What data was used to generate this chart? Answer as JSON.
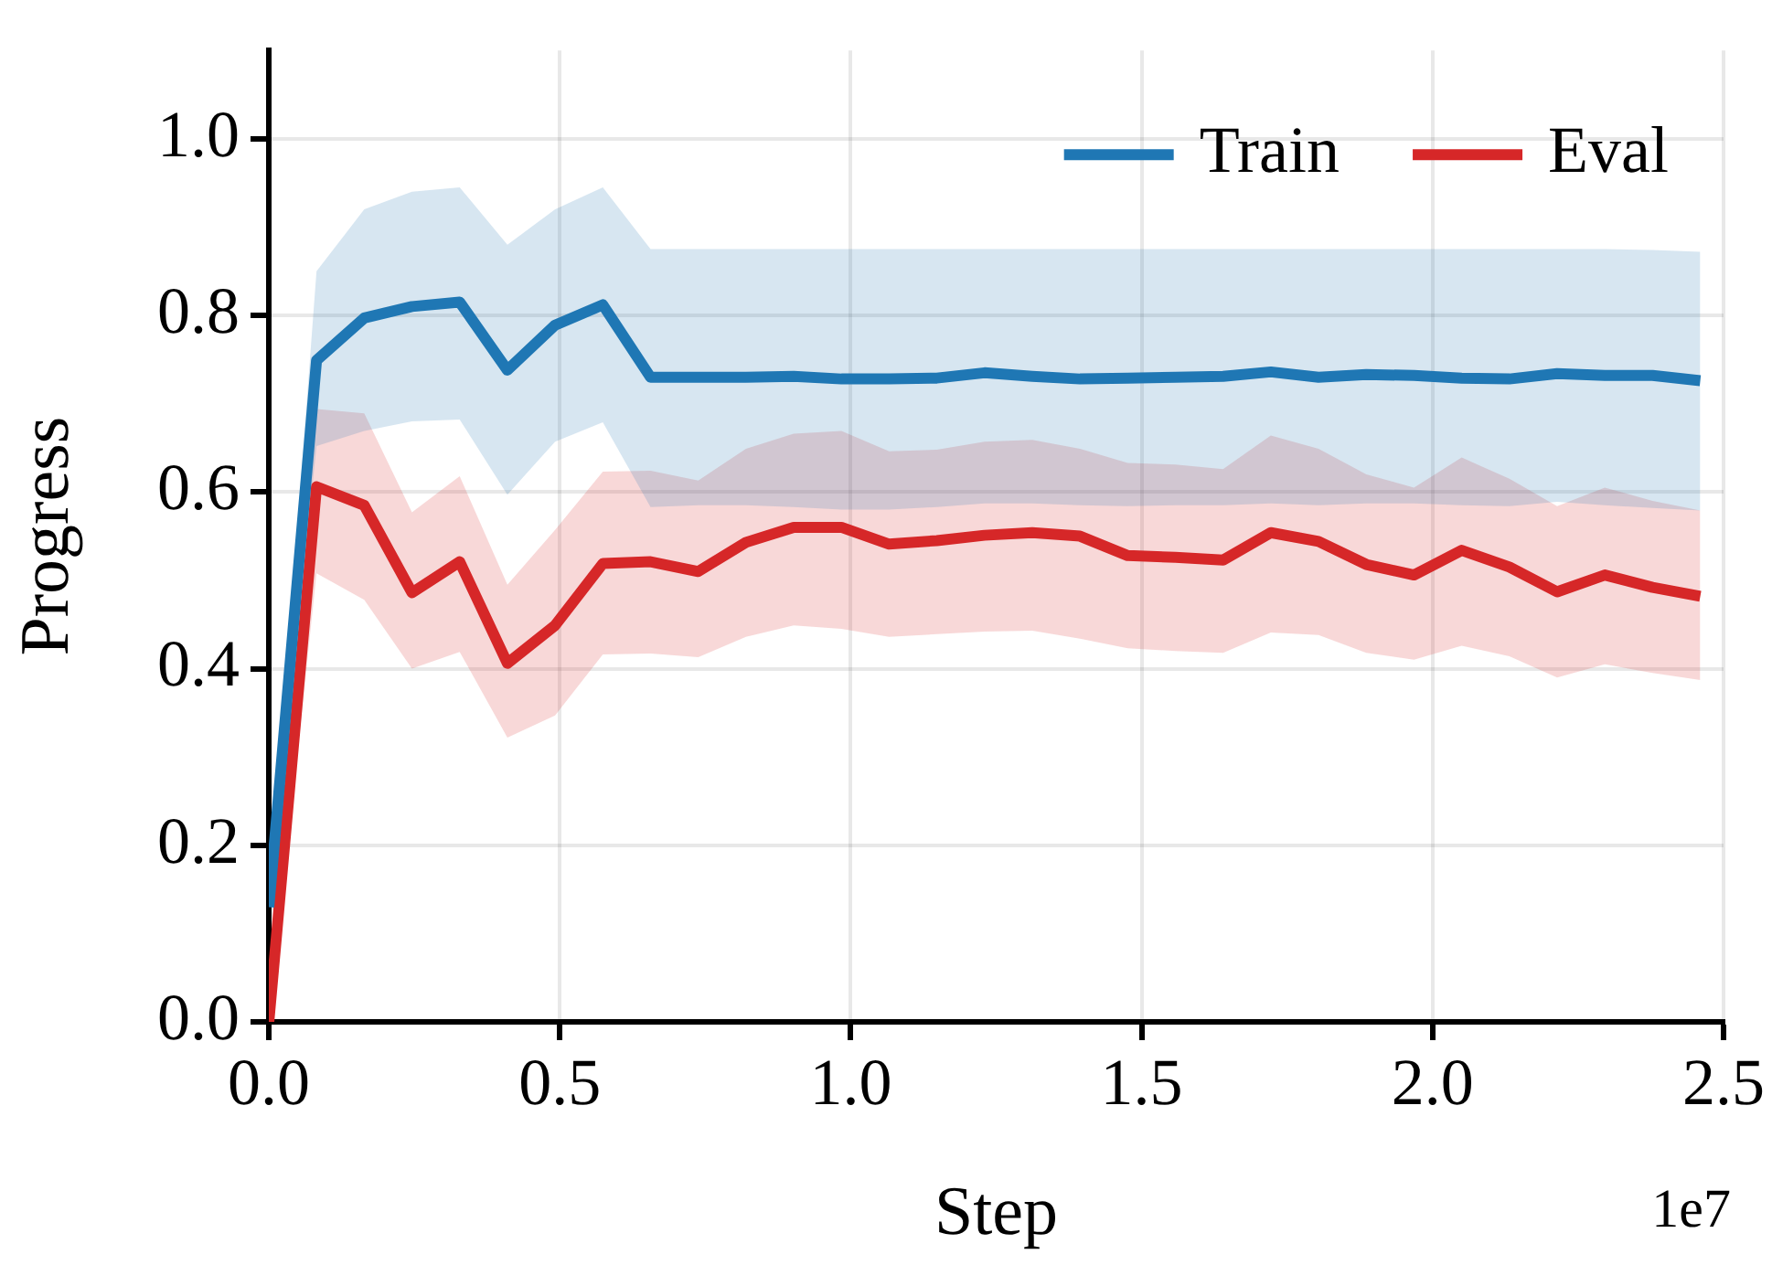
{
  "chart_data": {
    "type": "line",
    "xlabel": "Step",
    "ylabel": "Progress",
    "annotations": [
      "1e7"
    ],
    "x": [
      0,
      0.082,
      0.164,
      0.246,
      0.328,
      0.41,
      0.492,
      0.574,
      0.656,
      0.738,
      0.82,
      0.902,
      0.984,
      1.066,
      1.148,
      1.23,
      1.312,
      1.394,
      1.476,
      1.558,
      1.64,
      1.722,
      1.804,
      1.886,
      1.968,
      2.05,
      2.132,
      2.214,
      2.296,
      2.378,
      2.46
    ],
    "series": [
      {
        "name": "Train",
        "color": "#1f77b4",
        "values": [
          0.13,
          0.749,
          0.797,
          0.81,
          0.815,
          0.738,
          0.789,
          0.812,
          0.73,
          0.73,
          0.73,
          0.731,
          0.728,
          0.728,
          0.729,
          0.735,
          0.731,
          0.728,
          0.729,
          0.73,
          0.731,
          0.736,
          0.73,
          0.733,
          0.732,
          0.729,
          0.728,
          0.734,
          0.732,
          0.732,
          0.726
        ],
        "upper": [
          0.13,
          0.85,
          0.92,
          0.94,
          0.945,
          0.88,
          0.92,
          0.945,
          0.875,
          0.875,
          0.875,
          0.875,
          0.875,
          0.875,
          0.875,
          0.875,
          0.875,
          0.875,
          0.875,
          0.875,
          0.875,
          0.875,
          0.875,
          0.875,
          0.875,
          0.875,
          0.875,
          0.875,
          0.875,
          0.874,
          0.872
        ],
        "lower": [
          0.13,
          0.652,
          0.669,
          0.68,
          0.682,
          0.597,
          0.657,
          0.679,
          0.583,
          0.585,
          0.585,
          0.583,
          0.58,
          0.58,
          0.583,
          0.587,
          0.587,
          0.585,
          0.584,
          0.585,
          0.585,
          0.587,
          0.585,
          0.587,
          0.587,
          0.585,
          0.584,
          0.589,
          0.585,
          0.582,
          0.579
        ]
      },
      {
        "name": "Eval",
        "color": "#d62728",
        "values": [
          0,
          0.606,
          0.585,
          0.486,
          0.521,
          0.406,
          0.449,
          0.519,
          0.521,
          0.51,
          0.543,
          0.56,
          0.56,
          0.541,
          0.545,
          0.551,
          0.554,
          0.55,
          0.528,
          0.526,
          0.523,
          0.554,
          0.544,
          0.518,
          0.506,
          0.534,
          0.515,
          0.487,
          0.506,
          0.492,
          0.482
        ],
        "upper": [
          0,
          0.694,
          0.689,
          0.577,
          0.618,
          0.495,
          0.557,
          0.623,
          0.624,
          0.613,
          0.649,
          0.666,
          0.669,
          0.646,
          0.648,
          0.657,
          0.659,
          0.649,
          0.633,
          0.631,
          0.626,
          0.664,
          0.649,
          0.62,
          0.605,
          0.639,
          0.615,
          0.584,
          0.605,
          0.59,
          0.579
        ],
        "lower": [
          0,
          0.508,
          0.478,
          0.4,
          0.419,
          0.322,
          0.347,
          0.416,
          0.417,
          0.413,
          0.436,
          0.449,
          0.445,
          0.436,
          0.439,
          0.442,
          0.443,
          0.434,
          0.423,
          0.42,
          0.418,
          0.441,
          0.438,
          0.418,
          0.41,
          0.426,
          0.414,
          0.39,
          0.405,
          0.395,
          0.387
        ]
      }
    ],
    "xlim": [
      0,
      2.5
    ],
    "xticks": [
      {
        "value": 0,
        "label": "0.0"
      },
      {
        "value": 0.5,
        "label": "0.5"
      },
      {
        "value": 1,
        "label": "1.0"
      },
      {
        "value": 1.5,
        "label": "1.5"
      },
      {
        "value": 2,
        "label": "2.0"
      },
      {
        "value": 2.5,
        "label": "2.5"
      }
    ],
    "ylim": [
      0,
      1.1
    ],
    "yticks": [
      {
        "value": 0,
        "label": "0.0"
      },
      {
        "value": 0.2,
        "label": "0.2"
      },
      {
        "value": 0.4,
        "label": "0.4"
      },
      {
        "value": 0.6,
        "label": "0.6"
      },
      {
        "value": 0.8,
        "label": "0.8"
      },
      {
        "value": 1,
        "label": "1.0"
      }
    ],
    "grid": true,
    "legend": "top right",
    "line_style": "solid"
  }
}
